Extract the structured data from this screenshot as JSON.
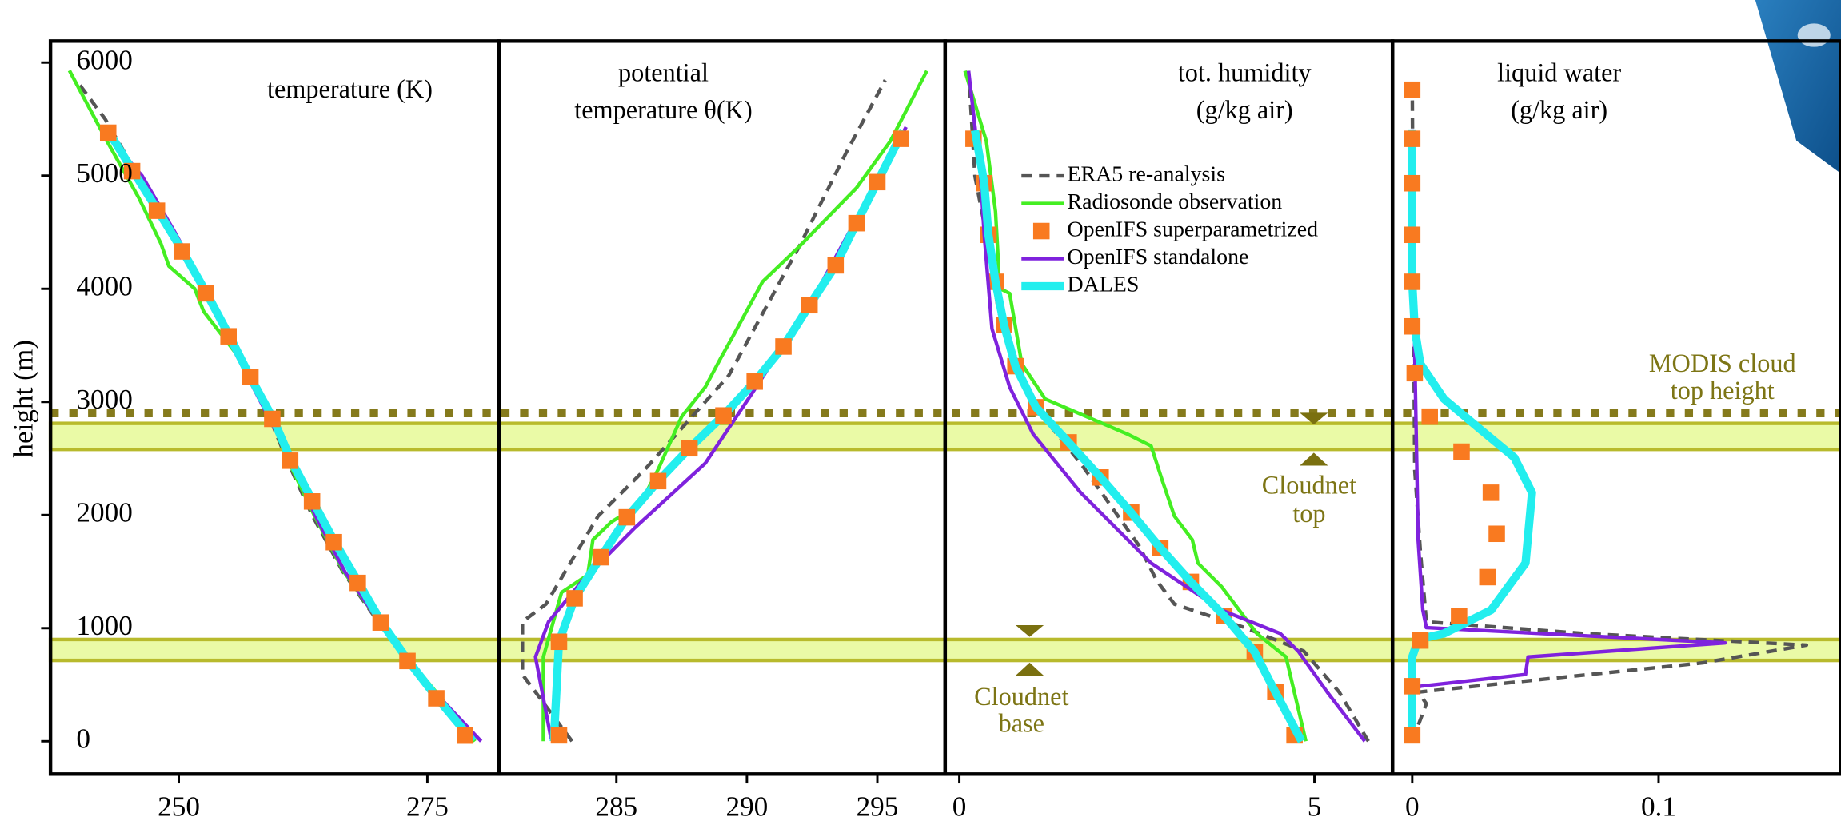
{
  "y_label": "height (m)",
  "bands": [
    [
      715,
      900
    ],
    [
      2580,
      2810
    ]
  ],
  "modis_height": 2900,
  "band_color": "#eafaa6",
  "band_edge": "#b8ba2c",
  "modis_color": "#857a1c",
  "annotations": {
    "modis": [
      "MODIS cloud",
      "top height"
    ],
    "cloudnet_top": [
      "Cloudnet",
      "top"
    ],
    "cloudnet_base": [
      "Cloudnet",
      "base"
    ]
  },
  "chart_data": [
    {
      "type": "line",
      "title": [
        "temperature (K)"
      ],
      "xlim": [
        237.1,
        282.2
      ],
      "xticks": [
        250,
        275
      ],
      "ylim": [
        -290,
        6190
      ],
      "yticks": [
        0,
        1000,
        2000,
        3000,
        4000,
        5000,
        6000
      ],
      "series": [
        {
          "color": "#555555",
          "style": "dashed",
          "x": [
            279.5,
            276.0,
            270.5,
            266.5,
            263.4,
            260.8,
            258.5,
            255.6,
            252.4,
            249.2,
            245.9,
            242.6,
            239.8
          ],
          "y": [
            0,
            400,
            1000,
            1500,
            2000,
            2500,
            3000,
            3500,
            4000,
            4500,
            5000,
            5500,
            5830
          ]
        },
        {
          "color": "#44ee22",
          "style": "line",
          "x": [
            279.8,
            276.2,
            270.6,
            266.6,
            263.6,
            260.9,
            258.6,
            256.0,
            252.5,
            251.6,
            249.0,
            248.2,
            246.0,
            242.8,
            239.0
          ],
          "y": [
            0,
            400,
            1000,
            1500,
            2000,
            2500,
            3000,
            3400,
            3800,
            4000,
            4200,
            4400,
            4800,
            5300,
            5930
          ]
        },
        {
          "color": "#7f22dd",
          "style": "line",
          "x": [
            280.4,
            276.1,
            270.6,
            266.7,
            263.7,
            261.2,
            259.0,
            255.3,
            252.7,
            249.6,
            246.3,
            242.6
          ],
          "y": [
            0,
            400,
            1000,
            1500,
            2000,
            2500,
            2870,
            3500,
            4000,
            4500,
            5000,
            5380
          ]
        },
        {
          "color": "#22eeee",
          "style": "thick",
          "x": [
            279.6,
            276.0,
            273.1,
            270.4,
            268.1,
            265.7,
            263.5,
            261.3,
            259.5,
            257.2,
            255.1,
            252.8,
            250.4,
            247.9,
            245.4,
            243.0
          ],
          "y": [
            0,
            380,
            710,
            1050,
            1400,
            1760,
            2120,
            2480,
            2850,
            3220,
            3580,
            3960,
            4330,
            4690,
            5040,
            5380
          ]
        },
        {
          "color": "#f97a20",
          "style": "markers",
          "x": [
            278.8,
            275.9,
            273.0,
            270.3,
            268.0,
            265.6,
            263.4,
            261.2,
            259.4,
            257.2,
            255.0,
            252.7,
            250.3,
            247.8,
            245.3,
            242.9
          ],
          "y": [
            50,
            380,
            710,
            1050,
            1400,
            1760,
            2120,
            2480,
            2850,
            3220,
            3580,
            3960,
            4330,
            4690,
            5040,
            5380
          ]
        }
      ]
    },
    {
      "type": "line",
      "title": [
        "potential",
        "temperature θ(K)"
      ],
      "xlim": [
        280.5,
        297.6
      ],
      "xticks": [
        285,
        290,
        295
      ],
      "ylim": [
        -290,
        6190
      ],
      "series": [
        {
          "color": "#555555",
          "style": "dashed",
          "x": [
            283.3,
            281.4,
            281.4,
            282.3,
            284.3,
            286.1,
            289.3,
            292.0,
            293.8,
            295.3
          ],
          "y": [
            0,
            590,
            1057,
            1212,
            1990,
            2404,
            3233,
            4373,
            5202,
            5845
          ]
        },
        {
          "color": "#44ee22",
          "style": "line",
          "x": [
            282.2,
            282.2,
            282.9,
            283.9,
            284.1,
            284.8,
            285.9,
            286.6,
            287.5,
            288.4,
            289.0,
            289.5,
            290.6,
            292.0,
            293.1,
            294.2,
            295.5,
            296.9
          ],
          "y": [
            0,
            746,
            1316,
            1470,
            1782,
            1938,
            2093,
            2404,
            2870,
            3130,
            3389,
            3596,
            4062,
            4373,
            4632,
            4891,
            5306,
            5927
          ]
        },
        {
          "color": "#7f22dd",
          "style": "line",
          "x": [
            282.5,
            281.9,
            282.4,
            283.7,
            285.7,
            288.4,
            290.2,
            292.4,
            294.6,
            296.1
          ],
          "y": [
            20,
            746,
            1057,
            1420,
            1886,
            2456,
            3078,
            3855,
            4787,
            5430
          ]
        },
        {
          "color": "#22eeee",
          "style": "thick",
          "x": [
            282.6,
            282.8,
            283.4,
            284.4,
            285.4,
            286.6,
            287.8,
            289.1,
            290.3,
            291.4,
            292.4,
            293.4,
            294.2,
            295.0,
            296.0
          ],
          "y": [
            0,
            880,
            1264,
            1627,
            1980,
            2300,
            2590,
            2880,
            3180,
            3490,
            3855,
            4207,
            4580,
            4943,
            5400
          ]
        },
        {
          "color": "#f97a20",
          "style": "markers",
          "x": [
            282.8,
            282.8,
            283.4,
            284.4,
            285.4,
            286.6,
            287.8,
            289.1,
            290.3,
            291.4,
            292.4,
            293.4,
            294.2,
            295.0,
            295.9
          ],
          "y": [
            52,
            880,
            1264,
            1627,
            1980,
            2300,
            2590,
            2880,
            3180,
            3490,
            3855,
            4207,
            4580,
            4943,
            5326
          ]
        }
      ]
    },
    {
      "type": "line",
      "title": [
        "tot. humidity",
        "(g/kg air)"
      ],
      "xlim": [
        -0.2,
        6.1
      ],
      "xticks": [
        0,
        5
      ],
      "ylim": [
        -290,
        6190
      ],
      "legend": "upper left",
      "series": [
        {
          "name": "ERA5 re-analysis",
          "color": "#555555",
          "style": "dashed",
          "x": [
            5.76,
            5.35,
            4.85,
            4.02,
            3.03,
            2.78,
            2.53,
            1.71,
            1.04,
            0.55,
            0.38,
            0.22,
            0.13
          ],
          "y": [
            0,
            435,
            798,
            1005,
            1212,
            1420,
            1730,
            2456,
            2974,
            3803,
            4477,
            4995,
            5927
          ]
        },
        {
          "name": "Radiosonde observation",
          "color": "#44ee22",
          "style": "line",
          "x": [
            4.88,
            4.6,
            4.19,
            3.69,
            3.36,
            3.28,
            3.03,
            2.86,
            2.7,
            2.37,
            1.21,
            0.88,
            0.71,
            0.55,
            0.55,
            0.51,
            0.38,
            0.08
          ],
          "y": [
            0,
            746,
            953,
            1368,
            1575,
            1782,
            1990,
            2300,
            2611,
            2715,
            3026,
            3337,
            3959,
            4010,
            4218,
            4684,
            5306,
            5927
          ]
        },
        {
          "name": "OpenIFS superparametrized",
          "color": "#f97a20",
          "style": "markers",
          "x": [
            4.72,
            4.45,
            4.16,
            3.73,
            3.26,
            2.83,
            2.42,
            1.99,
            1.54,
            1.08,
            0.79,
            0.63,
            0.51,
            0.41,
            0.35,
            0.2
          ],
          "y": [
            52,
            435,
            788,
            1109,
            1409,
            1710,
            2021,
            2332,
            2642,
            2953,
            3316,
            3679,
            4062,
            4477,
            4933,
            5326
          ]
        },
        {
          "name": "OpenIFS standalone",
          "color": "#7f22dd",
          "style": "line",
          "x": [
            5.71,
            5.18,
            4.77,
            4.52,
            3.69,
            2.7,
            1.71,
            1.04,
            0.71,
            0.46,
            0.35,
            0.3,
            0.13
          ],
          "y": [
            0,
            435,
            798,
            953,
            1161,
            1575,
            2197,
            2715,
            3130,
            3648,
            4477,
            4995,
            5927
          ]
        },
        {
          "name": "DALES",
          "color": "#22eeee",
          "style": "thick",
          "x": [
            4.82,
            4.45,
            4.16,
            3.73,
            3.26,
            2.83,
            2.42,
            1.99,
            1.54,
            1.08,
            0.79,
            0.63,
            0.51,
            0.41,
            0.35,
            0.22
          ],
          "y": [
            0,
            435,
            788,
            1109,
            1409,
            1710,
            2021,
            2332,
            2642,
            2953,
            3316,
            3679,
            4062,
            4477,
            4933,
            5400
          ]
        }
      ]
    },
    {
      "type": "line",
      "title": [
        "liquid water",
        "(g/kg air)"
      ],
      "xlim": [
        -0.008,
        0.174
      ],
      "xticks": [
        0,
        0.1
      ],
      "ylim": [
        -290,
        6190
      ],
      "series": [
        {
          "color": "#555555",
          "style": "dashed",
          "x": [
            0,
            0.0057,
            0.0024,
            0.118,
            0.16,
            0.07,
            0.0057,
            0.0033,
            0.001,
            0
          ],
          "y": [
            0,
            332,
            435,
            694,
            850,
            953,
            1057,
            1679,
            2404,
            5772
          ]
        },
        {
          "color": "#7f22dd",
          "style": "line",
          "x": [
            0,
            0,
            0.0033,
            0.046,
            0.047,
            0.127,
            0.0057,
            0.0043,
            0.0024,
            0.001,
            0
          ],
          "y": [
            0,
            435,
            487,
            591,
            746,
            870,
            1005,
            1161,
            1782,
            3440,
            5409
          ]
        },
        {
          "color": "#22eeee",
          "style": "thick",
          "x": [
            0,
            0,
            0.0024,
            0.0129,
            0.032,
            0.046,
            0.0486,
            0.0414,
            0.0271,
            0.0129,
            0.0033,
            0.001,
            0,
            0
          ],
          "y": [
            0,
            746,
            901,
            953,
            1161,
            1575,
            2197,
            2508,
            2767,
            3026,
            3337,
            3648,
            4062,
            5409
          ]
        },
        {
          "color": "#f97a20",
          "style": "markers",
          "x": [
            0,
            0,
            0.0033,
            0.019,
            0.0305,
            0.0343,
            0.0319,
            0.02,
            0.0071,
            0.001,
            0,
            0,
            0,
            0,
            0,
            0
          ],
          "y": [
            52,
            487,
            891,
            1109,
            1451,
            1834,
            2197,
            2560,
            2870,
            3254,
            3668,
            4062,
            4477,
            4933,
            5326,
            5760
          ]
        }
      ]
    }
  ]
}
